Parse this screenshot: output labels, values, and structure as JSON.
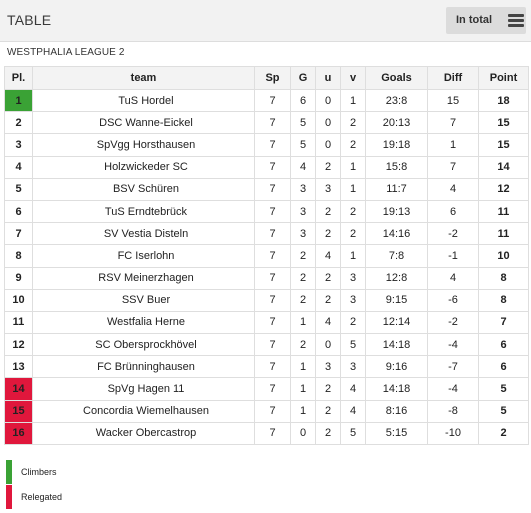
{
  "header": {
    "title": "TABLE",
    "view_toggle_label": "In total",
    "menu_icon": "hamburger-menu-icon"
  },
  "league": {
    "name": "WESTPHALIA LEAGUE 2"
  },
  "table": {
    "columns": {
      "pos": "Pl.",
      "team": "team",
      "played": "Sp",
      "won": "G",
      "drawn": "u",
      "lost": "v",
      "goals": "Goals",
      "diff": "Diff",
      "points": "Point"
    },
    "rows": [
      {
        "pos": "1",
        "team": "TuS Hordel",
        "played": "7",
        "won": "6",
        "drawn": "0",
        "lost": "1",
        "goals": "23:8",
        "diff": "15",
        "points": "18",
        "status": "climb"
      },
      {
        "pos": "2",
        "team": "DSC Wanne-Eickel",
        "played": "7",
        "won": "5",
        "drawn": "0",
        "lost": "2",
        "goals": "20:13",
        "diff": "7",
        "points": "15",
        "status": ""
      },
      {
        "pos": "3",
        "team": "SpVgg Horsthausen",
        "played": "7",
        "won": "5",
        "drawn": "0",
        "lost": "2",
        "goals": "19:18",
        "diff": "1",
        "points": "15",
        "status": ""
      },
      {
        "pos": "4",
        "team": "Holzwickeder SC",
        "played": "7",
        "won": "4",
        "drawn": "2",
        "lost": "1",
        "goals": "15:8",
        "diff": "7",
        "points": "14",
        "status": ""
      },
      {
        "pos": "5",
        "team": "BSV Schüren",
        "played": "7",
        "won": "3",
        "drawn": "3",
        "lost": "1",
        "goals": "11:7",
        "diff": "4",
        "points": "12",
        "status": ""
      },
      {
        "pos": "6",
        "team": "TuS Erndtebrück",
        "played": "7",
        "won": "3",
        "drawn": "2",
        "lost": "2",
        "goals": "19:13",
        "diff": "6",
        "points": "11",
        "status": ""
      },
      {
        "pos": "7",
        "team": "SV Vestia Disteln",
        "played": "7",
        "won": "3",
        "drawn": "2",
        "lost": "2",
        "goals": "14:16",
        "diff": "-2",
        "points": "11",
        "status": ""
      },
      {
        "pos": "8",
        "team": "FC Iserlohn",
        "played": "7",
        "won": "2",
        "drawn": "4",
        "lost": "1",
        "goals": "7:8",
        "diff": "-1",
        "points": "10",
        "status": ""
      },
      {
        "pos": "9",
        "team": "RSV Meinerzhagen",
        "played": "7",
        "won": "2",
        "drawn": "2",
        "lost": "3",
        "goals": "12:8",
        "diff": "4",
        "points": "8",
        "status": ""
      },
      {
        "pos": "10",
        "team": "SSV Buer",
        "played": "7",
        "won": "2",
        "drawn": "2",
        "lost": "3",
        "goals": "9:15",
        "diff": "-6",
        "points": "8",
        "status": ""
      },
      {
        "pos": "11",
        "team": "Westfalia Herne",
        "played": "7",
        "won": "1",
        "drawn": "4",
        "lost": "2",
        "goals": "12:14",
        "diff": "-2",
        "points": "7",
        "status": ""
      },
      {
        "pos": "12",
        "team": "SC Obersprockhövel",
        "played": "7",
        "won": "2",
        "drawn": "0",
        "lost": "5",
        "goals": "14:18",
        "diff": "-4",
        "points": "6",
        "status": ""
      },
      {
        "pos": "13",
        "team": "FC Brünninghausen",
        "played": "7",
        "won": "1",
        "drawn": "3",
        "lost": "3",
        "goals": "9:16",
        "diff": "-7",
        "points": "6",
        "status": ""
      },
      {
        "pos": "14",
        "team": "SpVg Hagen 11",
        "played": "7",
        "won": "1",
        "drawn": "2",
        "lost": "4",
        "goals": "14:18",
        "diff": "-4",
        "points": "5",
        "status": "releg"
      },
      {
        "pos": "15",
        "team": "Concordia Wiemelhausen",
        "played": "7",
        "won": "1",
        "drawn": "2",
        "lost": "4",
        "goals": "8:16",
        "diff": "-8",
        "points": "5",
        "status": "releg"
      },
      {
        "pos": "16",
        "team": "Wacker Obercastrop",
        "played": "7",
        "won": "0",
        "drawn": "2",
        "lost": "5",
        "goals": "5:15",
        "diff": "-10",
        "points": "2",
        "status": "releg"
      }
    ]
  },
  "legend": [
    {
      "label": "Climbers",
      "color": "#3aa235"
    },
    {
      "label": "Relegated",
      "color": "#e0173c"
    }
  ],
  "colors": {
    "climb": "#3aa235",
    "releg": "#e0173c",
    "header_bg": "#f2f2f2",
    "toggle_bg": "#dcdcdc"
  }
}
